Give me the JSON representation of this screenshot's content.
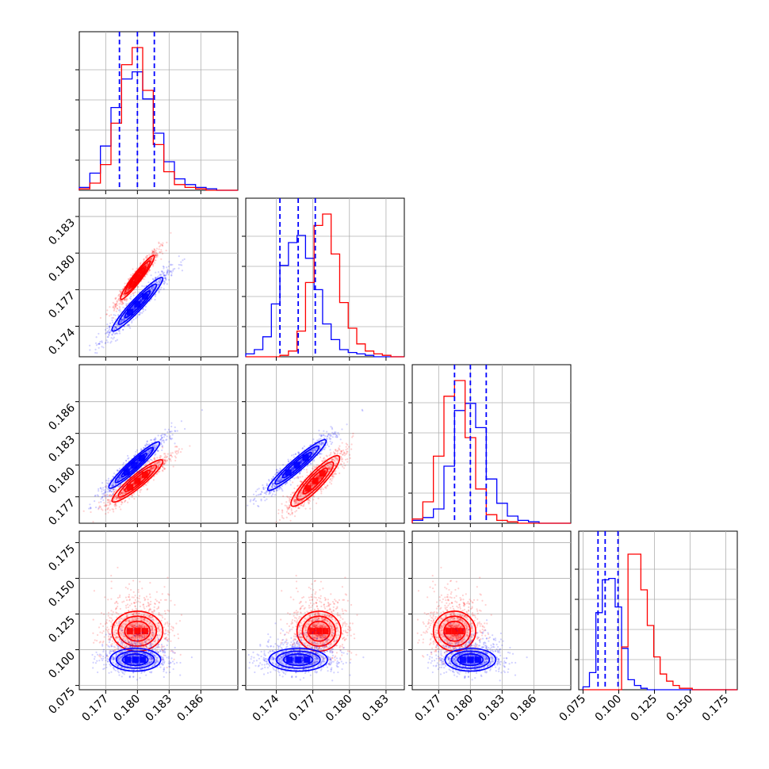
{
  "chart_data": {
    "type": "corner",
    "colors": {
      "red": "#ff0000",
      "blue": "#0000ff"
    },
    "grid": true,
    "parameters": [
      {
        "range": [
          0.1745,
          0.1895
        ],
        "ticks": [
          0.177,
          0.18,
          0.183,
          0.186
        ],
        "tick_labels": [
          "0.177",
          "0.180",
          "0.183",
          "0.186"
        ]
      },
      {
        "range": [
          0.1715,
          0.1845
        ],
        "ticks": [
          0.174,
          0.177,
          0.18,
          0.183
        ],
        "tick_labels": [
          "0.174",
          "0.177",
          "0.180",
          "0.183"
        ]
      },
      {
        "range": [
          0.1745,
          0.1895
        ],
        "ticks": [
          0.177,
          0.18,
          0.183,
          0.186
        ],
        "tick_labels": [
          "0.177",
          "0.180",
          "0.183",
          "0.186"
        ]
      },
      {
        "range": [
          0.072,
          0.183
        ],
        "ticks": [
          0.075,
          0.1,
          0.125,
          0.15,
          0.175
        ],
        "tick_labels": [
          "0.075",
          "0.100",
          "0.125",
          "0.150",
          "0.175"
        ]
      }
    ],
    "marginals": [
      {
        "bins": [
          0.1745,
          0.1755,
          0.1765,
          0.1775,
          0.1785,
          0.1795,
          0.1805,
          0.1815,
          0.1825,
          0.1835,
          0.1845,
          0.1855,
          0.1865,
          0.1875,
          0.1885,
          0.1895
        ],
        "red": [
          0.01,
          0.05,
          0.18,
          0.47,
          0.88,
          1.0,
          0.7,
          0.32,
          0.13,
          0.04,
          0.02,
          0.01,
          0.0,
          0.0,
          0.0
        ],
        "blue": [
          0.02,
          0.12,
          0.31,
          0.58,
          0.78,
          0.83,
          0.64,
          0.4,
          0.2,
          0.08,
          0.04,
          0.02,
          0.01,
          0.0,
          0.0
        ],
        "quantiles": [
          0.1783,
          0.18,
          0.1816
        ]
      },
      {
        "bins": [
          0.1715,
          0.1722,
          0.1729,
          0.1736,
          0.1743,
          0.175,
          0.1757,
          0.1764,
          0.1771,
          0.1778,
          0.1785,
          0.1792,
          0.1799,
          0.1806,
          0.1813,
          0.182,
          0.1827,
          0.1834,
          0.1841
        ],
        "red": [
          0.0,
          0.0,
          0.0,
          0.0,
          0.01,
          0.04,
          0.18,
          0.52,
          0.92,
          1.0,
          0.72,
          0.38,
          0.2,
          0.09,
          0.04,
          0.02,
          0.01,
          0.0
        ],
        "blue": [
          0.02,
          0.05,
          0.14,
          0.37,
          0.64,
          0.8,
          0.85,
          0.69,
          0.47,
          0.23,
          0.12,
          0.05,
          0.03,
          0.02,
          0.01,
          0.0,
          0.0,
          0.0
        ],
        "quantiles": [
          0.1743,
          0.1758,
          0.1772
        ]
      },
      {
        "bins": [
          0.1745,
          0.1755,
          0.1765,
          0.1775,
          0.1785,
          0.1795,
          0.1805,
          0.1815,
          0.1825,
          0.1835,
          0.1845,
          0.1855,
          0.1865,
          0.1875,
          0.1885,
          0.1895
        ],
        "red": [
          0.03,
          0.15,
          0.47,
          0.89,
          1.0,
          0.6,
          0.24,
          0.06,
          0.02,
          0.01,
          0.0,
          0.0,
          0.0,
          0.0,
          0.0
        ],
        "blue": [
          0.02,
          0.04,
          0.1,
          0.4,
          0.79,
          0.84,
          0.67,
          0.31,
          0.14,
          0.05,
          0.02,
          0.01,
          0.0,
          0.0,
          0.0
        ],
        "quantiles": [
          0.1785,
          0.18,
          0.1815
        ]
      },
      {
        "bins": [
          0.075,
          0.0795,
          0.084,
          0.0885,
          0.093,
          0.0975,
          0.102,
          0.1065,
          0.111,
          0.1155,
          0.12,
          0.1245,
          0.129,
          0.1335,
          0.138,
          0.1425,
          0.147,
          0.1515,
          0.156,
          0.1605
        ],
        "red": [
          0.0,
          0.0,
          0.0,
          0.0,
          0.0,
          0.0,
          0.3,
          0.95,
          0.95,
          0.7,
          0.45,
          0.23,
          0.11,
          0.06,
          0.03,
          0.01,
          0.01,
          0.0,
          0.0
        ],
        "blue": [
          0.02,
          0.12,
          0.54,
          0.77,
          0.78,
          0.58,
          0.29,
          0.07,
          0.03,
          0.01,
          0.0,
          0.0,
          0.0,
          0.0,
          0.0,
          0.0,
          0.0,
          0.0,
          0.0
        ],
        "quantiles": [
          0.0855,
          0.0905,
          0.0995
        ]
      }
    ],
    "joint": {
      "1-0": {
        "red": {
          "mean": [
            0.18,
            0.178
          ],
          "sd": [
            0.0008,
            0.0009
          ],
          "rho": 0.95
        },
        "blue": {
          "mean": [
            0.18,
            0.1758
          ],
          "sd": [
            0.0012,
            0.0011
          ],
          "rho": 0.95
        }
      },
      "2-0": {
        "red": {
          "mean": [
            0.18,
            0.1785
          ],
          "sd": [
            0.0012,
            0.001
          ],
          "rho": 0.92
        },
        "blue": {
          "mean": [
            0.1797,
            0.18
          ],
          "sd": [
            0.0012,
            0.0011
          ],
          "rho": 0.95
        }
      },
      "2-1": {
        "red": {
          "mean": [
            0.1772,
            0.1785
          ],
          "sd": [
            0.001,
            0.0012
          ],
          "rho": 0.9
        },
        "blue": {
          "mean": [
            0.1757,
            0.18
          ],
          "sd": [
            0.0012,
            0.0012
          ],
          "rho": 0.95
        }
      },
      "3-0": {
        "red": {
          "mean": [
            0.18,
            0.113
          ],
          "sd": [
            0.0012,
            0.007
          ],
          "rho": 0.0
        },
        "blue": {
          "mean": [
            0.1798,
            0.093
          ],
          "sd": [
            0.0012,
            0.004
          ],
          "rho": 0.0
        }
      },
      "3-1": {
        "red": {
          "mean": [
            0.1775,
            0.113
          ],
          "sd": [
            0.0009,
            0.007
          ],
          "rho": 0.0
        },
        "blue": {
          "mean": [
            0.1758,
            0.093
          ],
          "sd": [
            0.0012,
            0.004
          ],
          "rho": 0.0
        }
      },
      "3-2": {
        "red": {
          "mean": [
            0.1785,
            0.113
          ],
          "sd": [
            0.001,
            0.007
          ],
          "rho": 0.0
        },
        "blue": {
          "mean": [
            0.18,
            0.093
          ],
          "sd": [
            0.0012,
            0.004
          ],
          "rho": 0.0
        }
      }
    },
    "contour_levels_sigma": [
      0.5,
      1.0,
      1.5,
      2.0
    ]
  }
}
